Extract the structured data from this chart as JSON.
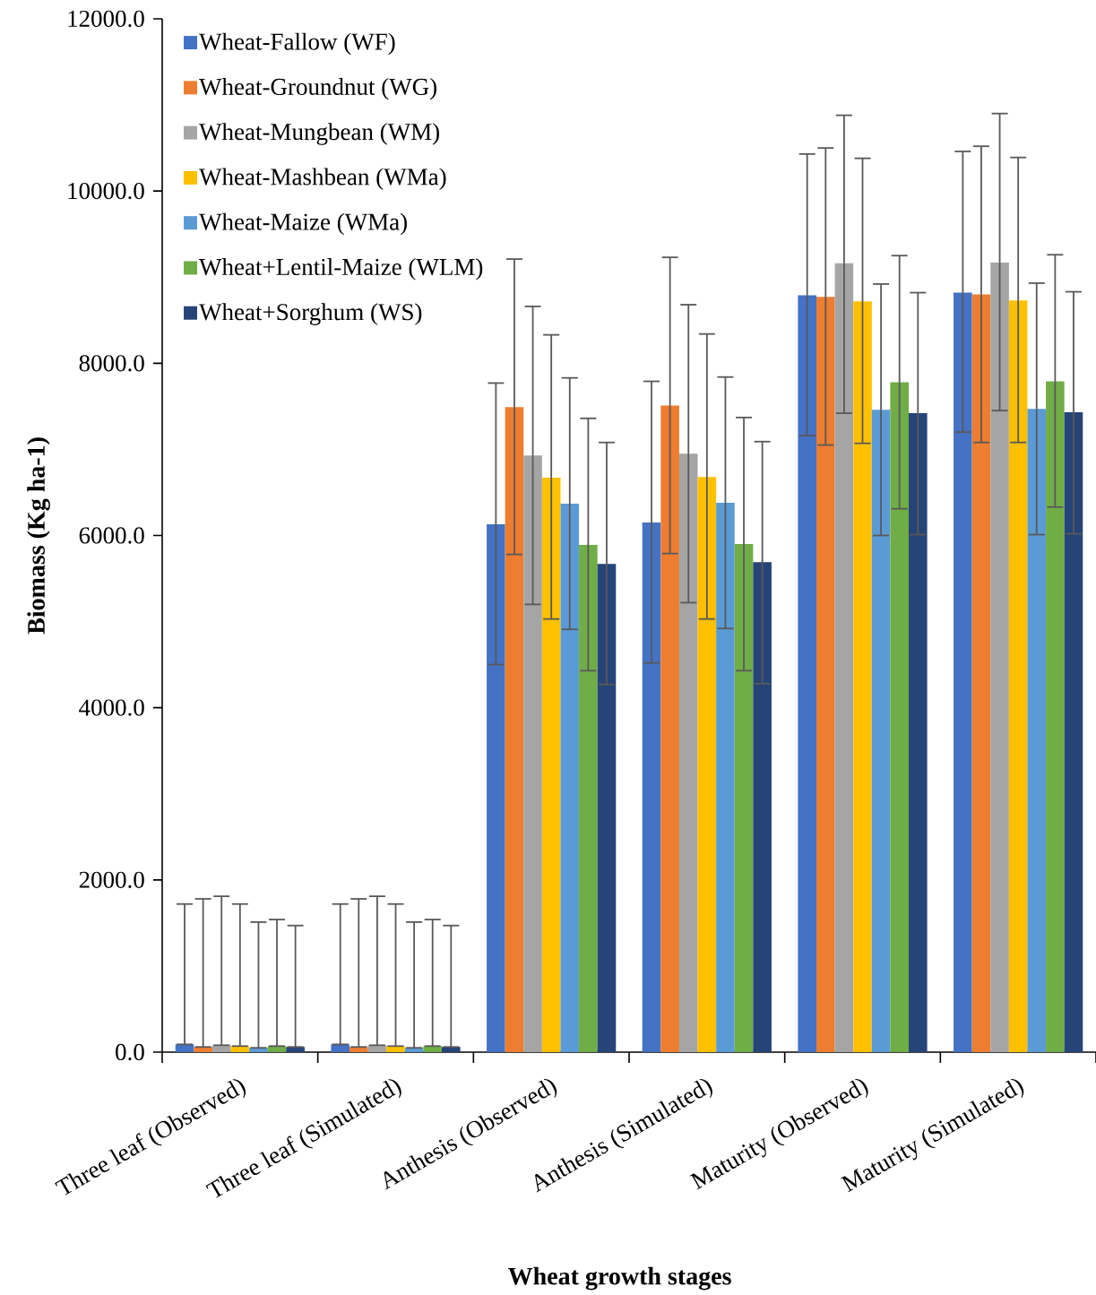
{
  "chart_data": {
    "type": "bar",
    "xlabel": "Wheat growth stages",
    "ylabel": "Biomass (Kg ha-1)",
    "categories": [
      "Three leaf (Observed)",
      "Three leaf (Simulated)",
      "Anthesis (Observed)",
      "Anthesis (Simulated)",
      "Maturity (Observed)",
      "Maturity (Simulated)"
    ],
    "ylim": [
      0,
      12000
    ],
    "yticks": [
      {
        "value": 0,
        "label": "0.0"
      },
      {
        "value": 2000,
        "label": "2000.0"
      },
      {
        "value": 4000,
        "label": "4000.0"
      },
      {
        "value": 6000,
        "label": "6000.0"
      },
      {
        "value": 8000,
        "label": "8000.0"
      },
      {
        "value": 10000,
        "label": "10000.0"
      },
      {
        "value": 12000,
        "label": "12000.0"
      }
    ],
    "legend": "top left",
    "grid": false,
    "series": [
      {
        "name": "Wheat-Fallow (WF)",
        "color": "#4472c4",
        "values": [
          90,
          90,
          6130,
          6150,
          8790,
          8820
        ],
        "errors": [
          [
            90,
            1720
          ],
          [
            90,
            1720
          ],
          [
            4500,
            7770
          ],
          [
            4520,
            7790
          ],
          [
            7160,
            10430
          ],
          [
            7200,
            10460
          ]
        ]
      },
      {
        "name": "Wheat-Groundnut (WG)",
        "color": "#ed7d31",
        "values": [
          60,
          60,
          7490,
          7510,
          8770,
          8800
        ],
        "errors": [
          [
            60,
            1780
          ],
          [
            60,
            1780
          ],
          [
            5780,
            9210
          ],
          [
            5790,
            9230
          ],
          [
            7050,
            10500
          ],
          [
            7080,
            10520
          ]
        ]
      },
      {
        "name": "Wheat-Mungbean (WM)",
        "color": "#a5a5a5",
        "values": [
          80,
          80,
          6930,
          6950,
          9160,
          9170
        ],
        "errors": [
          [
            80,
            1810
          ],
          [
            80,
            1810
          ],
          [
            5200,
            8660
          ],
          [
            5220,
            8680
          ],
          [
            7420,
            10880
          ],
          [
            7450,
            10900
          ]
        ]
      },
      {
        "name": "Wheat-Mashbean (WMa)",
        "color": "#ffc000",
        "values": [
          70,
          70,
          6670,
          6680,
          8720,
          8730
        ],
        "errors": [
          [
            70,
            1720
          ],
          [
            70,
            1720
          ],
          [
            5030,
            8330
          ],
          [
            5030,
            8340
          ],
          [
            7070,
            10380
          ],
          [
            7080,
            10390
          ]
        ]
      },
      {
        "name": "Wheat-Maize (WMa)",
        "color": "#5b9bd5",
        "values": [
          50,
          50,
          6370,
          6380,
          7460,
          7470
        ],
        "errors": [
          [
            50,
            1510
          ],
          [
            50,
            1510
          ],
          [
            4910,
            7830
          ],
          [
            4920,
            7840
          ],
          [
            6000,
            8920
          ],
          [
            6010,
            8930
          ]
        ]
      },
      {
        "name": "Wheat+Lentil-Maize (WLM)",
        "color": "#70ad47",
        "values": [
          70,
          70,
          5890,
          5900,
          7780,
          7790
        ],
        "errors": [
          [
            70,
            1540
          ],
          [
            70,
            1540
          ],
          [
            4430,
            7360
          ],
          [
            4430,
            7370
          ],
          [
            6310,
            9250
          ],
          [
            6330,
            9260
          ]
        ]
      },
      {
        "name": "Wheat+Sorghum (WS)",
        "color": "#264478",
        "values": [
          60,
          60,
          5670,
          5690,
          7420,
          7430
        ],
        "errors": [
          [
            60,
            1470
          ],
          [
            60,
            1470
          ],
          [
            4270,
            7080
          ],
          [
            4280,
            7090
          ],
          [
            6010,
            8820
          ],
          [
            6020,
            8830
          ]
        ]
      }
    ]
  }
}
